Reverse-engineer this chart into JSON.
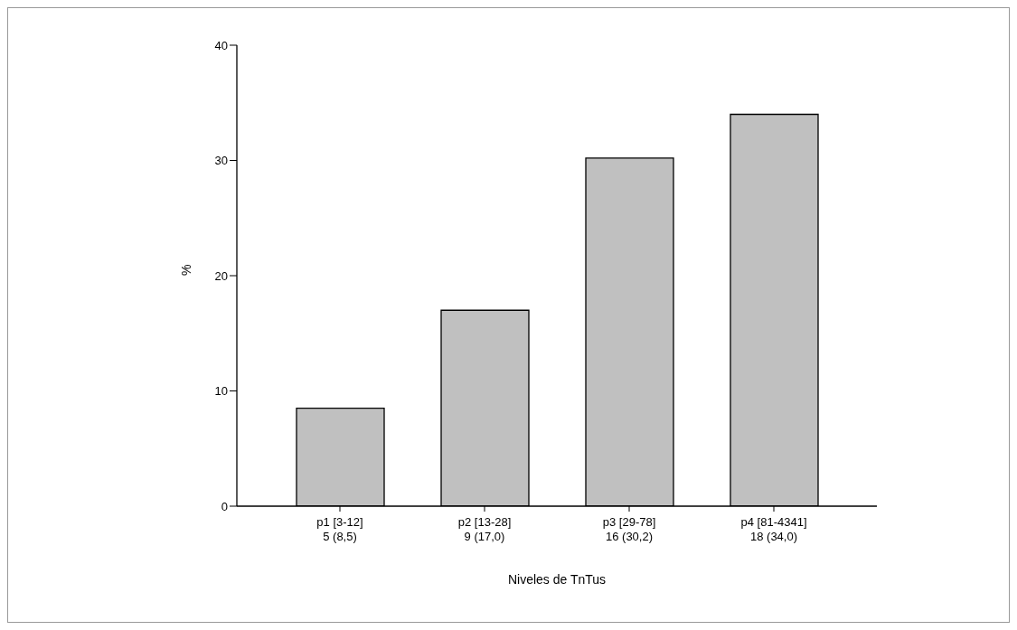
{
  "chart_data": {
    "type": "bar",
    "xlabel": "Niveles de TnTus",
    "ylabel": "%",
    "categories": [
      "p1 [3-12]\n5 (8,5)",
      "p2 [13-28]\n9 (17,0)",
      "p3 [29-78]\n16 (30,2)",
      "p4 [81-4341]\n18 (34,0)"
    ],
    "values": [
      8.5,
      17.0,
      30.2,
      34.0
    ],
    "color": "#c0c0c0",
    "ylim": [
      0,
      40
    ],
    "yticks": [
      0,
      10,
      20,
      30,
      40
    ],
    "grid": false,
    "legend": false
  }
}
